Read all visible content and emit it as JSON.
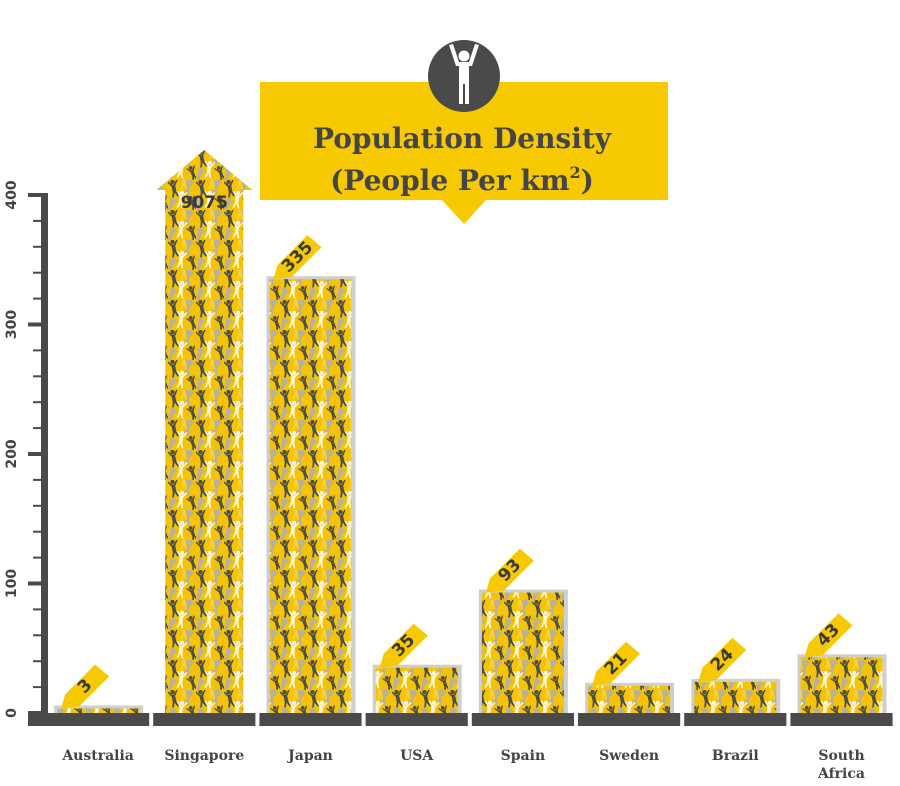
{
  "chart_data": {
    "type": "bar",
    "title_line1": "Population Density",
    "title_line2_prefix": "(People Per km",
    "title_superscript": "2",
    "title_line2_suffix": ")",
    "categories": [
      "Australia",
      "Singapore",
      "Japan",
      "USA",
      "Spain",
      "Sweden",
      "Brazil",
      "South Africa"
    ],
    "category_lines": [
      [
        "Australia"
      ],
      [
        "Singapore"
      ],
      [
        "Japan"
      ],
      [
        "USA"
      ],
      [
        "Spain"
      ],
      [
        "Sweden"
      ],
      [
        "Brazil"
      ],
      [
        "South",
        "Africa"
      ]
    ],
    "values": [
      3,
      9075,
      335,
      35,
      93,
      21,
      24,
      43
    ],
    "value_labels": [
      "3",
      "9075",
      "335",
      "35",
      "93",
      "21",
      "24",
      "43"
    ],
    "ylim": [
      0,
      400
    ],
    "yticks": [
      0,
      100,
      200,
      300,
      400
    ],
    "ytick_labels": [
      "0",
      "100",
      "200",
      "300",
      "400"
    ],
    "overflow_category": "Singapore",
    "xlabel": "",
    "ylabel": "",
    "colors": {
      "bar": "#f5c400",
      "bar_light": "#f7d23a",
      "figure_dark": "#4d4d4d",
      "figure_gray": "#b5b0a3",
      "figure_white": "#fff6d8",
      "bar_shadow": "#cfcfcf",
      "axis": "#4a4a4a",
      "title_bg": "#f7c900",
      "icon_bg": "#4a4a4a",
      "text": "#444444"
    },
    "icon": "person-arms-up-icon"
  }
}
